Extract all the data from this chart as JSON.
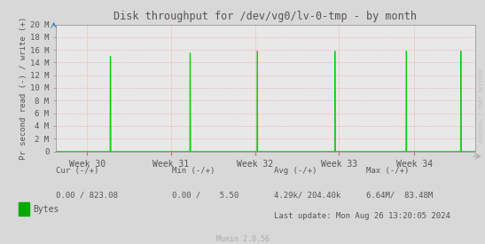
{
  "title": "Disk throughput for /dev/vg0/lv-0-tmp - by month",
  "ylabel": "Pr second read (-) / write (+)",
  "background_color": "#d8d8d8",
  "plot_bg_color": "#e8e8e8",
  "grid_color": "#ff9999",
  "line_color": "#00cc00",
  "baseline_color": "#000000",
  "x_ticks_labels": [
    "Week 30",
    "Week 31",
    "Week 32",
    "Week 33",
    "Week 34"
  ],
  "x_ticks_pos": [
    0.075,
    0.275,
    0.475,
    0.675,
    0.855
  ],
  "ylim": [
    0,
    20000000
  ],
  "ytick_vals": [
    0,
    2000000,
    4000000,
    6000000,
    8000000,
    10000000,
    12000000,
    14000000,
    16000000,
    18000000,
    20000000
  ],
  "ytick_labels": [
    "0",
    "2 M",
    "4 M",
    "6 M",
    "8 M",
    "10 M",
    "12 M",
    "14 M",
    "16 M",
    "18 M",
    "20 M"
  ],
  "spike_x": [
    0.13,
    0.32,
    0.48,
    0.665,
    0.835,
    0.965
  ],
  "spike_y": [
    15000000,
    15500000,
    15800000,
    15800000,
    15800000,
    15800000
  ],
  "xlim": [
    0.0,
    1.0
  ],
  "watermark": "RRDTOOL / TOBI OETIKER",
  "munin_version": "Munin 2.0.56",
  "legend_label": "Bytes",
  "legend_color": "#00aa00",
  "axis_color": "#999999",
  "title_color": "#555555",
  "label_color": "#555555",
  "tick_label_color": "#555555",
  "footer_cur_header": "Cur (-/+)",
  "footer_min_header": "Min (-/+)",
  "footer_avg_header": "Avg (-/+)",
  "footer_max_header": "Max (-/+)",
  "footer_cur": "0.00 / 823.08",
  "footer_min": "0.00 /    5.50",
  "footer_avg": "4.29k/ 204.40k",
  "footer_max": "6.64M/  83.48M",
  "footer_lastupdate": "Last update: Mon Aug 26 13:20:05 2024"
}
